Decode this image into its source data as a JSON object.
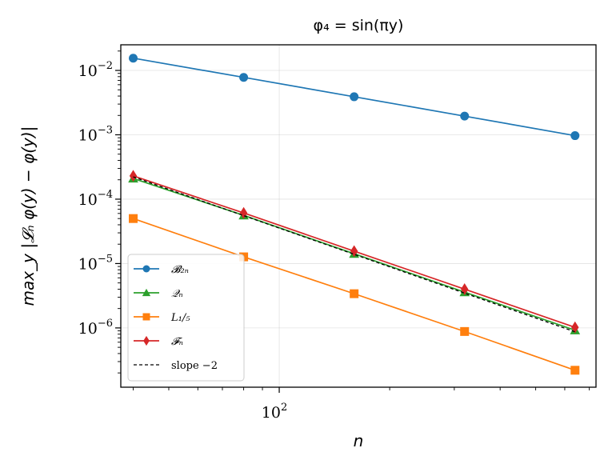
{
  "chart_data": {
    "type": "line",
    "title": "φ₄ = sin(πy)",
    "xlabel": "n",
    "ylabel": "max_y |𝓛ₙ φ(y) − φ(y)|",
    "xscale": "log",
    "yscale": "log",
    "xlim": [
      37,
      730
    ],
    "ylim": [
      1.2e-07,
      0.025
    ],
    "x_tick_labels": [
      {
        "value": 100,
        "base": "10",
        "exp": "2"
      }
    ],
    "y_tick_labels": [
      {
        "value": 0.01,
        "base": "10",
        "exp": "−2"
      },
      {
        "value": 0.001,
        "base": "10",
        "exp": "−3"
      },
      {
        "value": 0.0001,
        "base": "10",
        "exp": "−4"
      },
      {
        "value": 1e-05,
        "base": "10",
        "exp": "−5"
      },
      {
        "value": 1e-06,
        "base": "10",
        "exp": "−6"
      }
    ],
    "grid": true,
    "legend_position": "lower-left",
    "x": [
      40,
      80,
      160,
      320,
      640
    ],
    "series": [
      {
        "name": "𝓑₂ₙ",
        "color": "#1f77b4",
        "marker": "circle",
        "values": [
          0.0155,
          0.0078,
          0.0039,
          0.00195,
          0.00097
        ]
      },
      {
        "name": "𝒬ₙ",
        "color": "#2ca02c",
        "marker": "triangle",
        "values": [
          0.00021,
          5.6e-05,
          1.42e-05,
          3.6e-06,
          9.2e-07
        ]
      },
      {
        "name": "L₁/₅",
        "color": "#ff7f0e",
        "marker": "square",
        "values": [
          5e-05,
          1.27e-05,
          3.4e-06,
          8.8e-07,
          2.2e-07
        ]
      },
      {
        "name": "𝓕ₙ",
        "color": "#d62728",
        "marker": "diamond",
        "values": [
          0.00023,
          6.1e-05,
          1.56e-05,
          4e-06,
          1.02e-06
        ]
      },
      {
        "name": "slope −2",
        "color": "#000000",
        "marker": "none",
        "dashed": true,
        "values": [
          0.000222,
          5.55e-05,
          1.39e-05,
          3.47e-06,
          8.7e-07
        ]
      }
    ]
  }
}
